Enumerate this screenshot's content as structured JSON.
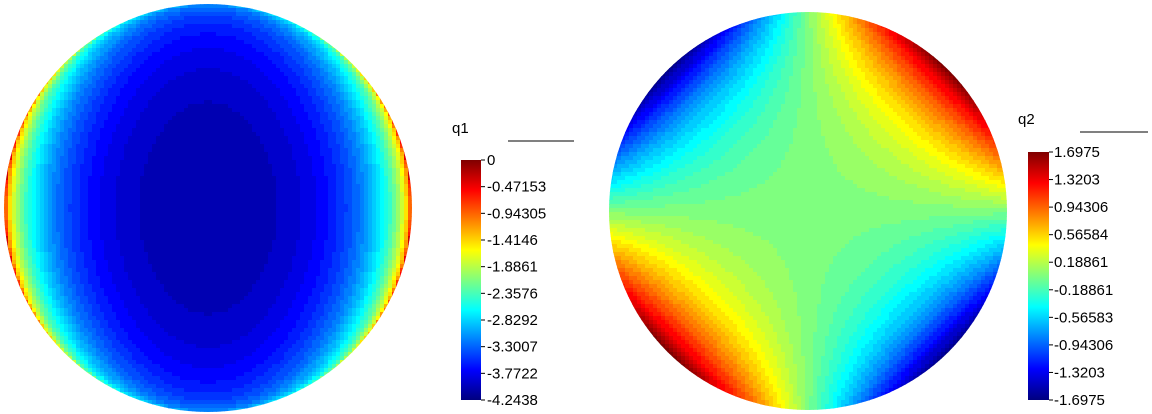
{
  "chart_data": [
    {
      "type": "heatmap",
      "title": "",
      "colorbar": {
        "label": "q1",
        "ticks": [
          "0",
          "-0.47153",
          "-0.94305",
          "-1.4146",
          "-1.8861",
          "-2.3576",
          "-2.8292",
          "-3.3007",
          "-3.7722",
          "-4.2438"
        ],
        "range": [
          -4.2438,
          0
        ]
      },
      "grid": false,
      "field_description": "circular domain; minimum at center, rising to maximum at left and right rim"
    },
    {
      "type": "heatmap",
      "title": "",
      "colorbar": {
        "label": "q2",
        "ticks": [
          "1.6975",
          "1.3203",
          "0.94306",
          "0.56584",
          "0.18861",
          "-0.18861",
          "-0.56583",
          "-0.94306",
          "-1.3203",
          "-1.6975"
        ],
        "range": [
          -1.6975,
          1.6975
        ]
      },
      "grid": false,
      "field_description": "circular domain; quadrant pattern, high at upper-right and lower-left, low at upper-left and lower-right"
    }
  ],
  "colormap": [
    "#00007f",
    "#0000ff",
    "#007fff",
    "#00ffff",
    "#7fff7f",
    "#ffff00",
    "#ff7f00",
    "#ff0000",
    "#7f0000"
  ]
}
